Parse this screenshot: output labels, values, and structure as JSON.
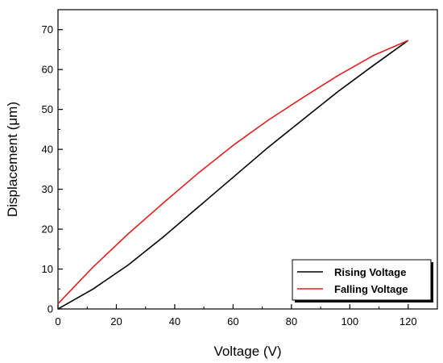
{
  "chart_data": {
    "type": "line",
    "title": "",
    "xlabel": "Voltage (V)",
    "ylabel": "Displacement (μm)",
    "xlim": [
      0,
      130
    ],
    "ylim": [
      0,
      75
    ],
    "xticks": [
      0,
      20,
      40,
      60,
      80,
      100,
      120
    ],
    "yticks": [
      0,
      10,
      20,
      30,
      40,
      50,
      60,
      70
    ],
    "xtick_labels": [
      "0",
      "20",
      "40",
      "60",
      "80",
      "100",
      "120"
    ],
    "ytick_labels": [
      "0",
      "10",
      "20",
      "30",
      "40",
      "50",
      "60",
      "70"
    ],
    "grid": false,
    "legend_position": "bottom-right",
    "series": [
      {
        "name": "Rising Voltage",
        "color": "#000000",
        "x": [
          0,
          12,
          24,
          36,
          48,
          60,
          72,
          84,
          96,
          108,
          120
        ],
        "y": [
          0,
          5,
          11,
          18,
          25.5,
          33,
          40.5,
          47.5,
          54.5,
          61,
          67.3
        ]
      },
      {
        "name": "Falling Voltage",
        "color": "#e02020",
        "x": [
          0,
          12,
          24,
          36,
          48,
          60,
          72,
          84,
          96,
          108,
          120
        ],
        "y": [
          1.3,
          10.5,
          18.8,
          26.5,
          34,
          41,
          47.3,
          53,
          58.5,
          63.5,
          67.3
        ]
      }
    ]
  }
}
